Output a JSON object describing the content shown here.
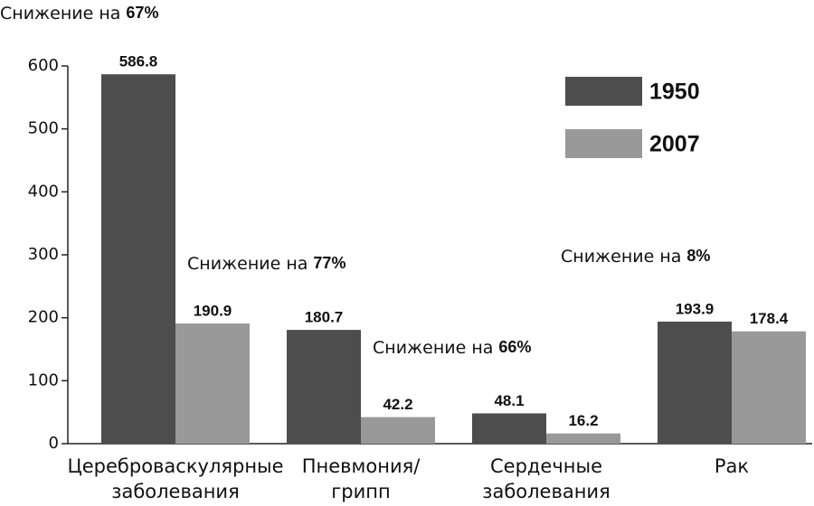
{
  "chart_data": {
    "type": "bar",
    "categories": [
      [
        "Цереброваскулярные",
        "заболевания"
      ],
      [
        "Пневмония/",
        "грипп"
      ],
      [
        "Сердечные",
        "заболевания"
      ],
      [
        "Рак"
      ]
    ],
    "series": [
      {
        "name": "1950",
        "color": "#4d4d4d",
        "values": [
          586.8,
          180.7,
          48.1,
          193.9
        ]
      },
      {
        "name": "2007",
        "color": "#999999",
        "values": [
          190.9,
          42.2,
          16.2,
          178.4
        ]
      }
    ],
    "ylim": [
      0,
      600
    ],
    "yticks": [
      0,
      100,
      200,
      300,
      400,
      500,
      600
    ],
    "legend": "upper-right",
    "annotations": [
      {
        "text": "Снижение на",
        "percent": "67%"
      },
      {
        "text": "Снижение на",
        "percent": "77%"
      },
      {
        "text": "Снижение на",
        "percent": "66%"
      },
      {
        "text": "Снижение на",
        "percent": "8%"
      }
    ]
  }
}
